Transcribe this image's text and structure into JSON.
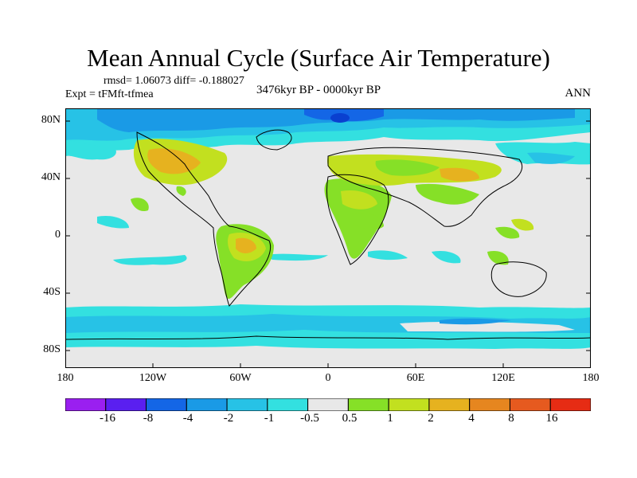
{
  "plot": {
    "title": "Mean Annual Cycle (Surface Air Temperature)",
    "stats": "rmsd= 1.06073 diff= -0.188027",
    "experiment": "Expt = tFMft-tfmea",
    "period": "3476kyr BP - 0000kyr BP",
    "season": "ANN"
  },
  "axes": {
    "lat_labels": [
      "80N",
      "40N",
      "0",
      "40S",
      "80S"
    ],
    "lon_labels": [
      "180",
      "120W",
      "60W",
      "0",
      "60E",
      "120E",
      "180"
    ]
  },
  "colorbar": {
    "labels": [
      "-16",
      "-8",
      "-4",
      "-2",
      "-1",
      "-0.5",
      "0.5",
      "1",
      "2",
      "4",
      "8",
      "16"
    ],
    "colors": [
      "#9a1ff0",
      "#5a1ff0",
      "#1466e6",
      "#1a9ae6",
      "#27c2e6",
      "#33e0e0",
      "#e8e8e8",
      "#86e027",
      "#c2e01f",
      "#e6b21f",
      "#e6861f",
      "#e65a1f",
      "#e62c14"
    ]
  }
}
